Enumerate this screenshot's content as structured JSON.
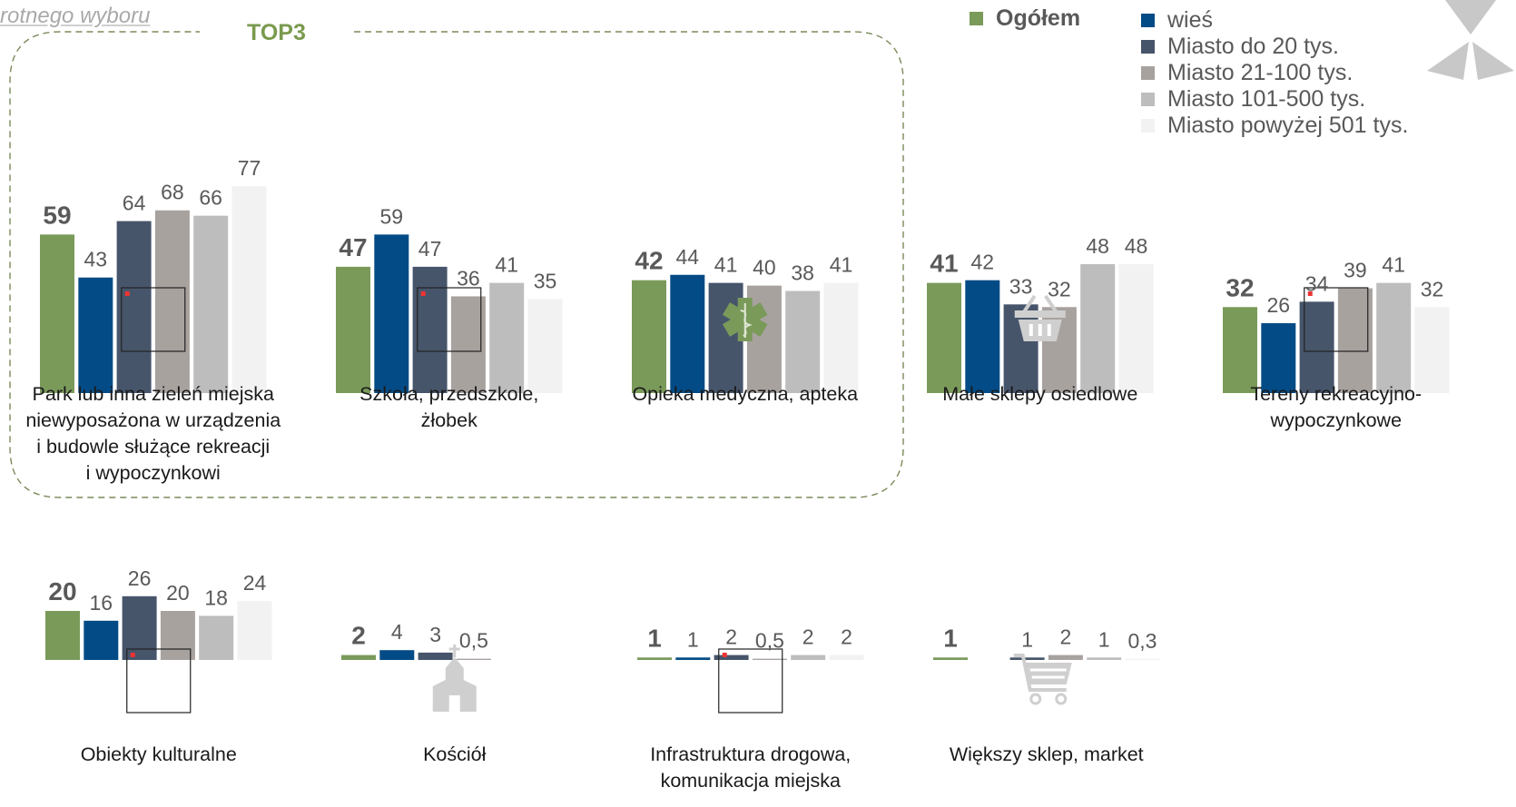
{
  "heading": "rotnego wyboru",
  "top3_label": "TOP3",
  "colors": {
    "ogolem": "#7A9A5A",
    "wies": "#034B86",
    "do20": "#47556B",
    "d21_100": "#A8A29F",
    "d101_500": "#BDBDBD",
    "pow501": "#F2F2F2",
    "text": "#595959",
    "top3_border": "#7a8a5a"
  },
  "legend": {
    "ogolem": "Ogółem",
    "items": [
      "wieś",
      "Miasto do 20 tys.",
      "Miasto 21-100 tys.",
      "Miasto 101-500 tys.",
      "Miasto powyżej 501 tys."
    ]
  },
  "chart_data": {
    "type": "bar",
    "series": [
      {
        "name": "Ogółem",
        "color": "#7A9A5A"
      },
      {
        "name": "wieś",
        "color": "#034B86"
      },
      {
        "name": "Miasto do 20 tys.",
        "color": "#47556B"
      },
      {
        "name": "Miasto 21-100 tys.",
        "color": "#A8A29F"
      },
      {
        "name": "Miasto 101-500 tys.",
        "color": "#BDBDBD"
      },
      {
        "name": "Miasto powyżej 501 tys.",
        "color": "#F2F2F2"
      }
    ],
    "groups": [
      {
        "label": [
          "Park lub inna zieleń miejska",
          "niewyposażona w urządzenia",
          "i budowle służące rekreacji",
          "i wypoczynkowi"
        ],
        "values": [
          59,
          43,
          64,
          68,
          66,
          77
        ],
        "labels": [
          "59",
          "43",
          "64",
          "68",
          "66",
          "77"
        ],
        "top3": true,
        "icon": "broken-image-icon"
      },
      {
        "label": [
          "Szkoła, przedszkole,",
          "żłobek"
        ],
        "values": [
          47,
          59,
          47,
          36,
          41,
          35
        ],
        "labels": [
          "47",
          "59",
          "47",
          "36",
          "41",
          "35"
        ],
        "top3": true,
        "icon": "broken-image-icon"
      },
      {
        "label": [
          "Opieka medyczna, apteka"
        ],
        "values": [
          42,
          44,
          41,
          40,
          38,
          41
        ],
        "labels": [
          "42",
          "44",
          "41",
          "40",
          "38",
          "41"
        ],
        "top3": true,
        "icon": "medical-cross-icon"
      },
      {
        "label": [
          "Małe sklepy osiedlowe"
        ],
        "values": [
          41,
          42,
          33,
          32,
          48,
          48
        ],
        "labels": [
          "41",
          "42",
          "33",
          "32",
          "48",
          "48"
        ],
        "top3": false,
        "icon": "shopping-basket-icon"
      },
      {
        "label": [
          "Tereny rekreacyjno-",
          "wypoczynkowe"
        ],
        "values": [
          32,
          26,
          34,
          39,
          41,
          32
        ],
        "labels": [
          "32",
          "26",
          "34",
          "39",
          "41",
          "32"
        ],
        "top3": false,
        "icon": "broken-image-icon"
      },
      {
        "label": [
          "Obiekty kulturalne"
        ],
        "values": [
          20,
          16,
          26,
          20,
          18,
          24
        ],
        "labels": [
          "20",
          "16",
          "26",
          "20",
          "18",
          "24"
        ],
        "top3": false,
        "icon": "broken-image-icon"
      },
      {
        "label": [
          "Kościół"
        ],
        "values": [
          2,
          4,
          3,
          0.5,
          null,
          null
        ],
        "labels": [
          "2",
          "4",
          "3",
          "0,5",
          "",
          ""
        ],
        "top3": false,
        "icon": "church-icon"
      },
      {
        "label": [
          "Infrastruktura drogowa,",
          "komunikacja miejska"
        ],
        "values": [
          1,
          1,
          2,
          0.5,
          2,
          2
        ],
        "labels": [
          "1",
          "1",
          "2",
          "0,5",
          "2",
          "2"
        ],
        "top3": false,
        "icon": "broken-image-icon"
      },
      {
        "label": [
          "Większy sklep, market"
        ],
        "values": [
          1,
          null,
          1,
          2,
          1,
          0.3
        ],
        "labels": [
          "1",
          "",
          "1",
          "2",
          "1",
          "0,3"
        ],
        "top3": false,
        "icon": "shopping-cart-icon"
      }
    ]
  }
}
